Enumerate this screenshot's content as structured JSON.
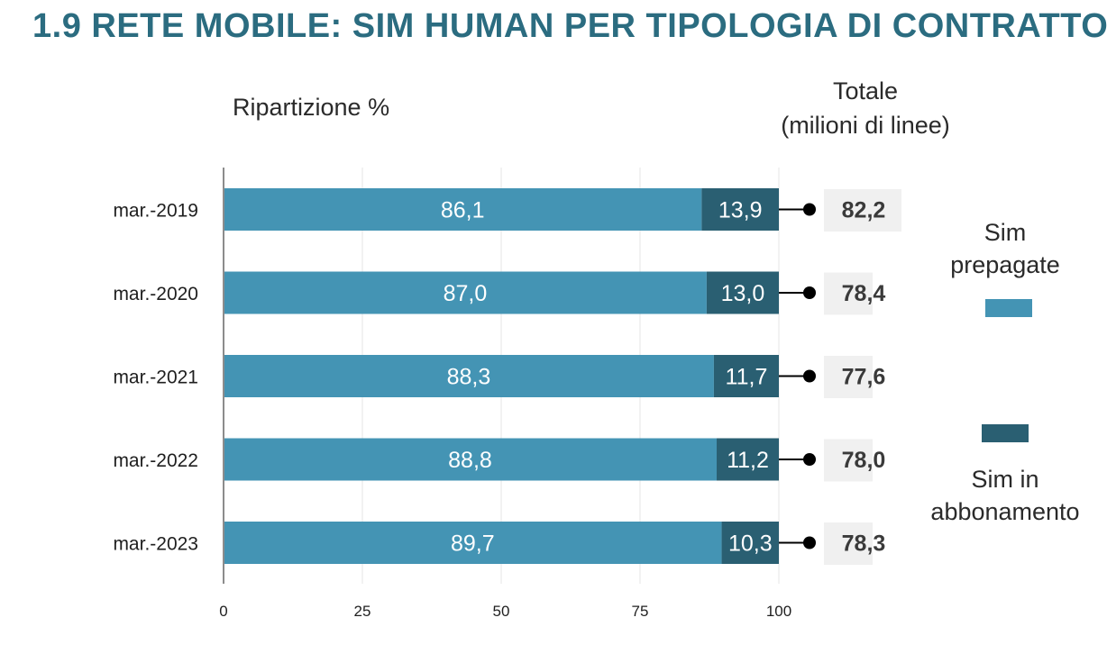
{
  "title": "1.9 RETE MOBILE: SIM HUMAN PER TIPOLOGIA DI CONTRATTO",
  "subtitle_left": "Ripartizione %",
  "subtitle_right": [
    "Totale",
    "(milioni di linee)"
  ],
  "legend": {
    "prepaid": {
      "lines": [
        "Sim",
        "prepagate"
      ],
      "color": "#4494b4"
    },
    "postpaid": {
      "lines": [
        "Sim in",
        "abbonamento"
      ],
      "color": "#2a5f72"
    }
  },
  "chart_data": {
    "type": "bar",
    "orientation": "horizontal",
    "stacked": true,
    "categories": [
      "mar.-2019",
      "mar.-2020",
      "mar.-2021",
      "mar.-2022",
      "mar.-2023"
    ],
    "series": [
      {
        "name": "Sim prepagate",
        "color": "#4494b4",
        "values": [
          86.1,
          87.0,
          88.3,
          88.8,
          89.7
        ],
        "labels": [
          "86,1",
          "87,0",
          "88,3",
          "88,8",
          "89,7"
        ]
      },
      {
        "name": "Sim in abbonamento",
        "color": "#2a5f72",
        "values": [
          13.9,
          13.0,
          11.7,
          11.2,
          10.3
        ],
        "labels": [
          "13,9",
          "13,0",
          "11,7",
          "11,2",
          "10,3"
        ]
      }
    ],
    "totals": {
      "values": [
        82.2,
        78.4,
        77.6,
        78.0,
        78.3
      ],
      "labels": [
        "82,2",
        "78,4",
        "77,6",
        "78,0",
        "78,3"
      ]
    },
    "xlim": [
      0,
      100
    ],
    "xticks": [
      0,
      25,
      50,
      75,
      100
    ],
    "grid": true,
    "legend_position": "right"
  }
}
